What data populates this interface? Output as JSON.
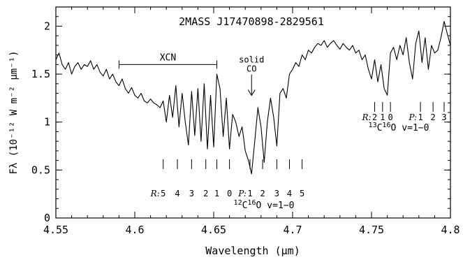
{
  "chart_data": {
    "type": "line",
    "title": "2MASS J17470898-2829561",
    "xlabel": "Wavelength (μm)",
    "ylabel": "Fλ (10⁻¹² W m⁻² μm⁻¹)",
    "xlim": [
      4.55,
      4.8
    ],
    "ylim": [
      0,
      2.2
    ],
    "x_ticks": [
      "4.55",
      "4.6",
      "4.65",
      "4.7",
      "4.75",
      "4.8"
    ],
    "y_ticks": [
      "0",
      "0.5",
      "1",
      "1.5",
      "2"
    ],
    "series": [
      {
        "x": [
          4.55,
          4.552,
          4.554,
          4.556,
          4.558,
          4.56,
          4.562,
          4.564,
          4.566,
          4.568,
          4.57,
          4.572,
          4.574,
          4.576,
          4.578,
          4.58,
          4.582,
          4.584,
          4.586,
          4.588,
          4.59,
          4.592,
          4.594,
          4.596,
          4.598,
          4.6,
          4.602,
          4.604,
          4.606,
          4.608,
          4.61,
          4.612,
          4.614,
          4.616,
          4.618,
          4.62,
          4.622,
          4.624,
          4.626,
          4.628,
          4.63,
          4.632,
          4.634,
          4.636,
          4.638,
          4.64,
          4.642,
          4.644,
          4.646,
          4.648,
          4.65,
          4.652,
          4.654,
          4.656,
          4.658,
          4.66,
          4.662,
          4.664,
          4.666,
          4.668,
          4.67,
          4.672,
          4.674,
          4.676,
          4.678,
          4.68,
          4.682,
          4.684,
          4.686,
          4.688,
          4.69,
          4.692,
          4.694,
          4.696,
          4.698,
          4.7,
          4.702,
          4.704,
          4.706,
          4.708,
          4.71,
          4.712,
          4.714,
          4.716,
          4.718,
          4.72,
          4.722,
          4.724,
          4.726,
          4.728,
          4.73,
          4.732,
          4.734,
          4.736,
          4.738,
          4.74,
          4.742,
          4.744,
          4.746,
          4.748,
          4.75,
          4.752,
          4.754,
          4.756,
          4.758,
          4.76,
          4.762,
          4.764,
          4.766,
          4.768,
          4.77,
          4.772,
          4.774,
          4.776,
          4.778,
          4.78,
          4.782,
          4.784,
          4.786,
          4.788,
          4.79,
          4.792,
          4.794,
          4.796,
          4.798,
          4.8
        ],
        "values": [
          1.65,
          1.72,
          1.6,
          1.55,
          1.62,
          1.5,
          1.58,
          1.62,
          1.55,
          1.6,
          1.58,
          1.64,
          1.55,
          1.6,
          1.52,
          1.48,
          1.55,
          1.45,
          1.5,
          1.42,
          1.38,
          1.45,
          1.35,
          1.3,
          1.36,
          1.28,
          1.25,
          1.3,
          1.22,
          1.2,
          1.24,
          1.2,
          1.18,
          1.15,
          1.22,
          1.0,
          1.28,
          1.05,
          1.38,
          0.95,
          1.3,
          1.0,
          0.76,
          1.32,
          0.86,
          1.35,
          0.8,
          1.4,
          0.72,
          1.28,
          0.74,
          1.5,
          1.35,
          0.85,
          1.25,
          0.72,
          1.08,
          1.0,
          0.85,
          0.95,
          0.7,
          0.6,
          0.46,
          0.8,
          1.15,
          0.95,
          0.58,
          1.0,
          1.25,
          1.05,
          0.75,
          1.3,
          1.35,
          1.25,
          1.5,
          1.55,
          1.62,
          1.58,
          1.7,
          1.65,
          1.75,
          1.72,
          1.78,
          1.82,
          1.8,
          1.85,
          1.78,
          1.82,
          1.85,
          1.8,
          1.76,
          1.82,
          1.78,
          1.75,
          1.8,
          1.72,
          1.75,
          1.65,
          1.7,
          1.55,
          1.45,
          1.65,
          1.42,
          1.6,
          1.35,
          1.28,
          1.72,
          1.78,
          1.65,
          1.8,
          1.7,
          1.88,
          1.62,
          1.45,
          1.82,
          1.95,
          1.62,
          1.88,
          1.55,
          1.8,
          1.72,
          1.75,
          1.88,
          2.05,
          1.92,
          1.8
        ]
      }
    ],
    "annotations": {
      "xcn": {
        "label": "XCN",
        "x_range": [
          4.59,
          4.652
        ],
        "y": 1.6
      },
      "solid_co": {
        "label_line1": "solid",
        "label_line2": "CO",
        "x": 4.674,
        "y": 1.38
      },
      "co12_r": {
        "prefix": "R:",
        "lines": [
          "5",
          "4",
          "3",
          "2",
          "1",
          "0"
        ],
        "x": [
          4.618,
          4.627,
          4.636,
          4.645,
          4.652,
          4.66
        ]
      },
      "co12_p": {
        "prefix": "P:",
        "lines": [
          "1",
          "2",
          "3",
          "4",
          "5"
        ],
        "x": [
          4.673,
          4.681,
          4.69,
          4.698,
          4.706
        ]
      },
      "co12_label": {
        "species": "C",
        "sup_mass": "12",
        "sup_o": "16",
        "o": "O",
        "band": "v=1−0"
      },
      "co13_r": {
        "prefix": "R:",
        "lines": [
          "2",
          "1",
          "0"
        ],
        "x": [
          4.752,
          4.757,
          4.762
        ]
      },
      "co13_p": {
        "prefix": "P:",
        "lines": [
          "1",
          "2",
          "3"
        ],
        "x": [
          4.781,
          4.789,
          4.796
        ]
      },
      "co13_label": {
        "species": "C",
        "sup_mass": "13",
        "sup_o": "16",
        "o": "O",
        "band": "v=1−0"
      }
    }
  }
}
